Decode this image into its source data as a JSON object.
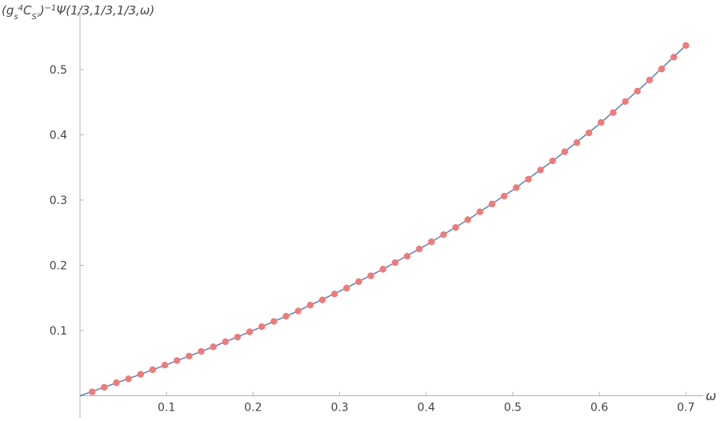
{
  "chart_data": {
    "type": "scatter",
    "y_label": [
      "(g",
      "s",
      "4",
      "C",
      "S²",
      ")",
      "−1",
      "Ψ(1/3,1/3,1/3,ω)"
    ],
    "x_label": "ω",
    "xlim": [
      0,
      0.72
    ],
    "ylim": [
      0,
      0.595
    ],
    "xticks": [
      0.1,
      0.2,
      0.3,
      0.4,
      0.5,
      0.6,
      0.7
    ],
    "yticks": [
      0.1,
      0.2,
      0.3,
      0.4,
      0.5
    ],
    "series": [
      {
        "mode": "line",
        "color": "#5e81b5",
        "x": [
          0,
          0.05,
          0.1,
          0.15,
          0.2,
          0.25,
          0.3,
          0.35,
          0.4,
          0.45,
          0.5,
          0.55,
          0.6,
          0.65,
          0.7
        ],
        "values": [
          0,
          0.0234,
          0.0476,
          0.073,
          0.1,
          0.1289,
          0.1602,
          0.1941,
          0.231,
          0.2714,
          0.3155,
          0.3637,
          0.4165,
          0.4742,
          0.5371
        ]
      },
      {
        "mode": "points",
        "color": "#f07a7a",
        "x": [
          0.014,
          0.028,
          0.042,
          0.056,
          0.07,
          0.084,
          0.098,
          0.112,
          0.126,
          0.14,
          0.154,
          0.168,
          0.182,
          0.196,
          0.21,
          0.224,
          0.238,
          0.252,
          0.266,
          0.28,
          0.294,
          0.308,
          0.322,
          0.336,
          0.35,
          0.364,
          0.378,
          0.392,
          0.406,
          0.42,
          0.434,
          0.448,
          0.462,
          0.476,
          0.49,
          0.504,
          0.518,
          0.532,
          0.546,
          0.56,
          0.574,
          0.588,
          0.602,
          0.616,
          0.63,
          0.644,
          0.658,
          0.672,
          0.686,
          0.7
        ],
        "values": [
          0.006,
          0.013,
          0.02,
          0.026,
          0.033,
          0.04,
          0.047,
          0.054,
          0.061,
          0.068,
          0.075,
          0.083,
          0.09,
          0.098,
          0.106,
          0.114,
          0.122,
          0.13,
          0.139,
          0.147,
          0.156,
          0.165,
          0.175,
          0.184,
          0.194,
          0.204,
          0.214,
          0.225,
          0.236,
          0.247,
          0.258,
          0.27,
          0.282,
          0.294,
          0.306,
          0.319,
          0.332,
          0.346,
          0.36,
          0.374,
          0.388,
          0.403,
          0.419,
          0.434,
          0.451,
          0.467,
          0.484,
          0.501,
          0.519,
          0.537
        ]
      }
    ]
  }
}
